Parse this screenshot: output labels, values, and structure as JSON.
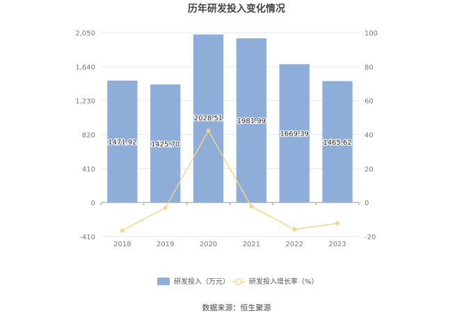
{
  "chart_data": {
    "type": "bar+line",
    "title": "历年研发投入变化情况",
    "categories": [
      "2018",
      "2019",
      "2020",
      "2021",
      "2022",
      "2023"
    ],
    "series": [
      {
        "name": "研发投入（万元）",
        "type": "bar",
        "axis": "left",
        "values": [
          1471.92,
          1425.7,
          2028.51,
          1981.99,
          1669.39,
          1465.62
        ],
        "labels": [
          "1471.92",
          "1425.70",
          "2028.51",
          "1981.99",
          "1669.39",
          "1465.62"
        ],
        "color": "#8fadd9"
      },
      {
        "name": "研发投入增长率（%）",
        "type": "line",
        "axis": "right",
        "values": [
          -16.5,
          -3.1,
          42.3,
          -2.3,
          -15.8,
          -12.2
        ],
        "color": "#fad38b"
      }
    ],
    "left_axis": {
      "min": -410,
      "max": 2050,
      "ticks": [
        "-410",
        "0",
        "410",
        "820",
        "1,230",
        "1,640",
        "2,050"
      ]
    },
    "right_axis": {
      "min": -20,
      "max": 100,
      "ticks": [
        "-20",
        "0",
        "20",
        "40",
        "60",
        "80",
        "100"
      ]
    },
    "grid": true,
    "legend_position": "bottom"
  },
  "footer": {
    "source": "数据来源：恒生聚源"
  }
}
